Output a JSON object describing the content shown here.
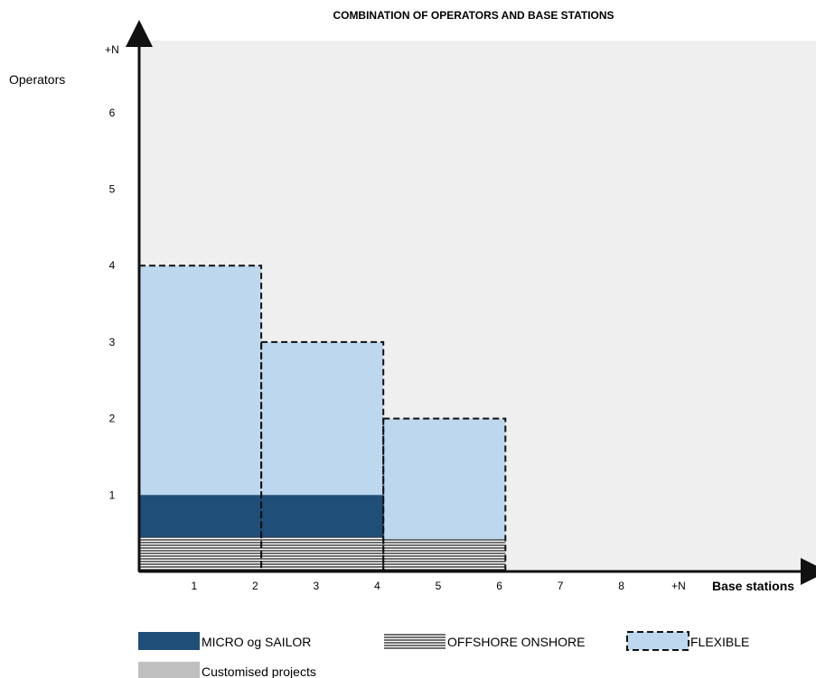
{
  "chart_data": {
    "type": "bar",
    "title": "COMBINATION OF OPERATORS AND BASE STATIONS",
    "xlabel": "Base stations",
    "ylabel": "Operators",
    "x_tick_labels": [
      "1",
      "2",
      "3",
      "4",
      "5",
      "6",
      "7",
      "8",
      "+N"
    ],
    "y_tick_labels": [
      "1",
      "2",
      "3",
      "4",
      "5",
      "6",
      "+N"
    ],
    "xlim": [
      0,
      9
    ],
    "ylim": [
      0,
      7
    ],
    "grid": false,
    "background_color": "#efefef",
    "colors": {
      "flexible": "#bdd7ee",
      "micro_sailor": "#1f4e79",
      "offshore_onshore": "#1a1a1a",
      "customised_projects": "#c0c0c0"
    },
    "series": [
      {
        "name": "FLEXIBLE",
        "style": "dashed-outline-filled",
        "segments": [
          {
            "x_start": 0,
            "x_end": 2,
            "y_top": 4
          },
          {
            "x_start": 2,
            "x_end": 4,
            "y_top": 3
          },
          {
            "x_start": 4,
            "x_end": 6,
            "y_top": 2
          }
        ]
      },
      {
        "name": "MICRO og SAILOR",
        "style": "solid",
        "segments": [
          {
            "x_start": 0,
            "x_end": 4,
            "y_top": 1
          }
        ]
      },
      {
        "name": "OFFSHORE ONSHORE",
        "style": "horizontal-hatch",
        "segments": [
          {
            "x_start": 0,
            "x_end": 4,
            "y_top": 0.45
          },
          {
            "x_start": 4,
            "x_end": 6,
            "y_top": 0.42
          }
        ]
      }
    ],
    "legend": [
      {
        "label": "MICRO og SAILOR",
        "swatch": "micro_sailor"
      },
      {
        "label": "OFFSHORE ONSHORE",
        "swatch": "offshore_onshore"
      },
      {
        "label": "FLEXIBLE",
        "swatch": "flexible"
      },
      {
        "label": "Customised projects",
        "swatch": "customised_projects"
      }
    ],
    "legend_placement": "bottom"
  }
}
